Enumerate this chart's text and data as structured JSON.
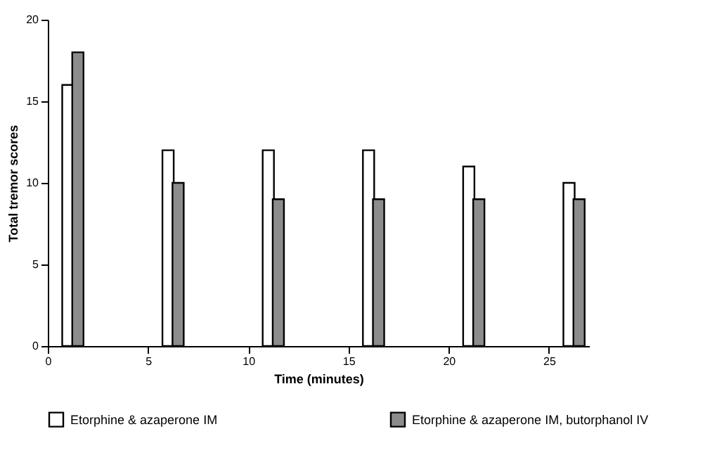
{
  "chart_data": {
    "type": "bar",
    "xlabel": "Time (minutes)",
    "ylabel": "Total tremor scores",
    "x": [
      1,
      6,
      11,
      16,
      21,
      26
    ],
    "series": [
      {
        "name": "Etorphine & azaperone IM",
        "color": "#ffffff",
        "values": [
          16,
          12,
          12,
          12,
          11,
          10
        ]
      },
      {
        "name": "Etorphine & azaperone IM, butorphanol IV",
        "color": "#8c8c8c",
        "x": [
          1.5,
          6.5,
          11.5,
          16.5,
          21.5,
          26.5
        ],
        "values": [
          18,
          10,
          9,
          9,
          9,
          9
        ]
      }
    ],
    "xlim": [
      0,
      27
    ],
    "xticks": [
      0,
      5,
      10,
      15,
      20,
      25
    ],
    "ylim": [
      0,
      20
    ],
    "yticks": [
      0,
      5,
      10,
      15,
      20
    ],
    "grid": false,
    "legend": "bottom"
  }
}
